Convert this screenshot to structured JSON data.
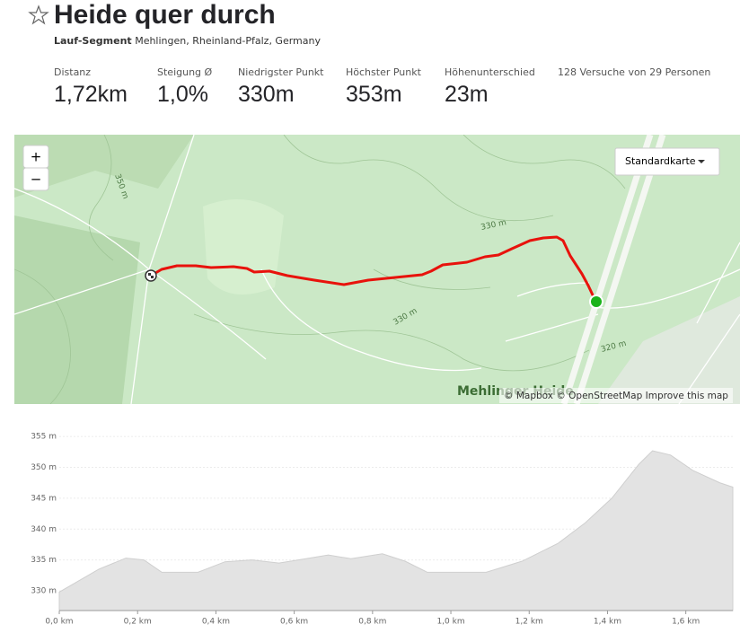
{
  "header": {
    "title": "Heide quer durch",
    "segment_type": "Lauf-Segment",
    "location": "Mehlingen, Rheinland-Pfalz, Germany"
  },
  "stats": [
    {
      "label": "Distanz",
      "value": "1,72km"
    },
    {
      "label": "Steigung Ø",
      "value": "1,0%"
    },
    {
      "label": "Niedrigster Punkt",
      "value": "330m"
    },
    {
      "label": "Höchster Punkt",
      "value": "353m"
    },
    {
      "label": "Höhenunterschied",
      "value": "23m"
    }
  ],
  "attempts": "128 Versuche von 29 Personen",
  "map": {
    "zoom_in": "+",
    "zoom_out": "−",
    "style_button": "Standardkarte",
    "place_label": "Mehlinger Heide",
    "contour_labels": [
      "350 m",
      "330 m",
      "330 m",
      "320 m"
    ],
    "attribution": [
      "© Mapbox",
      "© OpenStreetMap",
      "Improve this map"
    ]
  },
  "chart_data": {
    "type": "area",
    "x": [
      0,
      0.101,
      0.17,
      0.216,
      0.262,
      0.354,
      0.423,
      0.492,
      0.561,
      0.63,
      0.687,
      0.745,
      0.825,
      0.883,
      0.94,
      1.09,
      1.182,
      1.274,
      1.343,
      1.411,
      1.48,
      1.515,
      1.561,
      1.618,
      1.687,
      1.72
    ],
    "values": [
      329.8,
      333.5,
      335.3,
      335,
      333,
      333,
      334.7,
      335,
      334.5,
      335.2,
      335.8,
      335.2,
      336,
      334.8,
      333,
      333,
      334.8,
      337.7,
      341,
      345,
      350.5,
      352.7,
      352,
      349.5,
      347.5,
      346.8
    ],
    "color": "#e3e3e3",
    "xlim": [
      0,
      1.72
    ],
    "ylim": [
      326.8,
      355.9
    ],
    "xticks": [
      {
        "value": 0,
        "label": "0,0 km"
      },
      {
        "value": 0.2,
        "label": "0,2 km"
      },
      {
        "value": 0.4,
        "label": "0,4 km"
      },
      {
        "value": 0.6,
        "label": "0,6 km"
      },
      {
        "value": 0.8,
        "label": "0,8 km"
      },
      {
        "value": 1.0,
        "label": "1,0 km"
      },
      {
        "value": 1.2,
        "label": "1,2 km"
      },
      {
        "value": 1.4,
        "label": "1,4 km"
      },
      {
        "value": 1.6,
        "label": "1,6 km"
      }
    ],
    "yticks": [
      {
        "value": 330,
        "label": "330 m"
      },
      {
        "value": 335,
        "label": "335 m"
      },
      {
        "value": 340,
        "label": "340 m"
      },
      {
        "value": 345,
        "label": "345 m"
      },
      {
        "value": 350,
        "label": "350 m"
      },
      {
        "value": 355,
        "label": "355 m"
      }
    ],
    "grid": true
  }
}
